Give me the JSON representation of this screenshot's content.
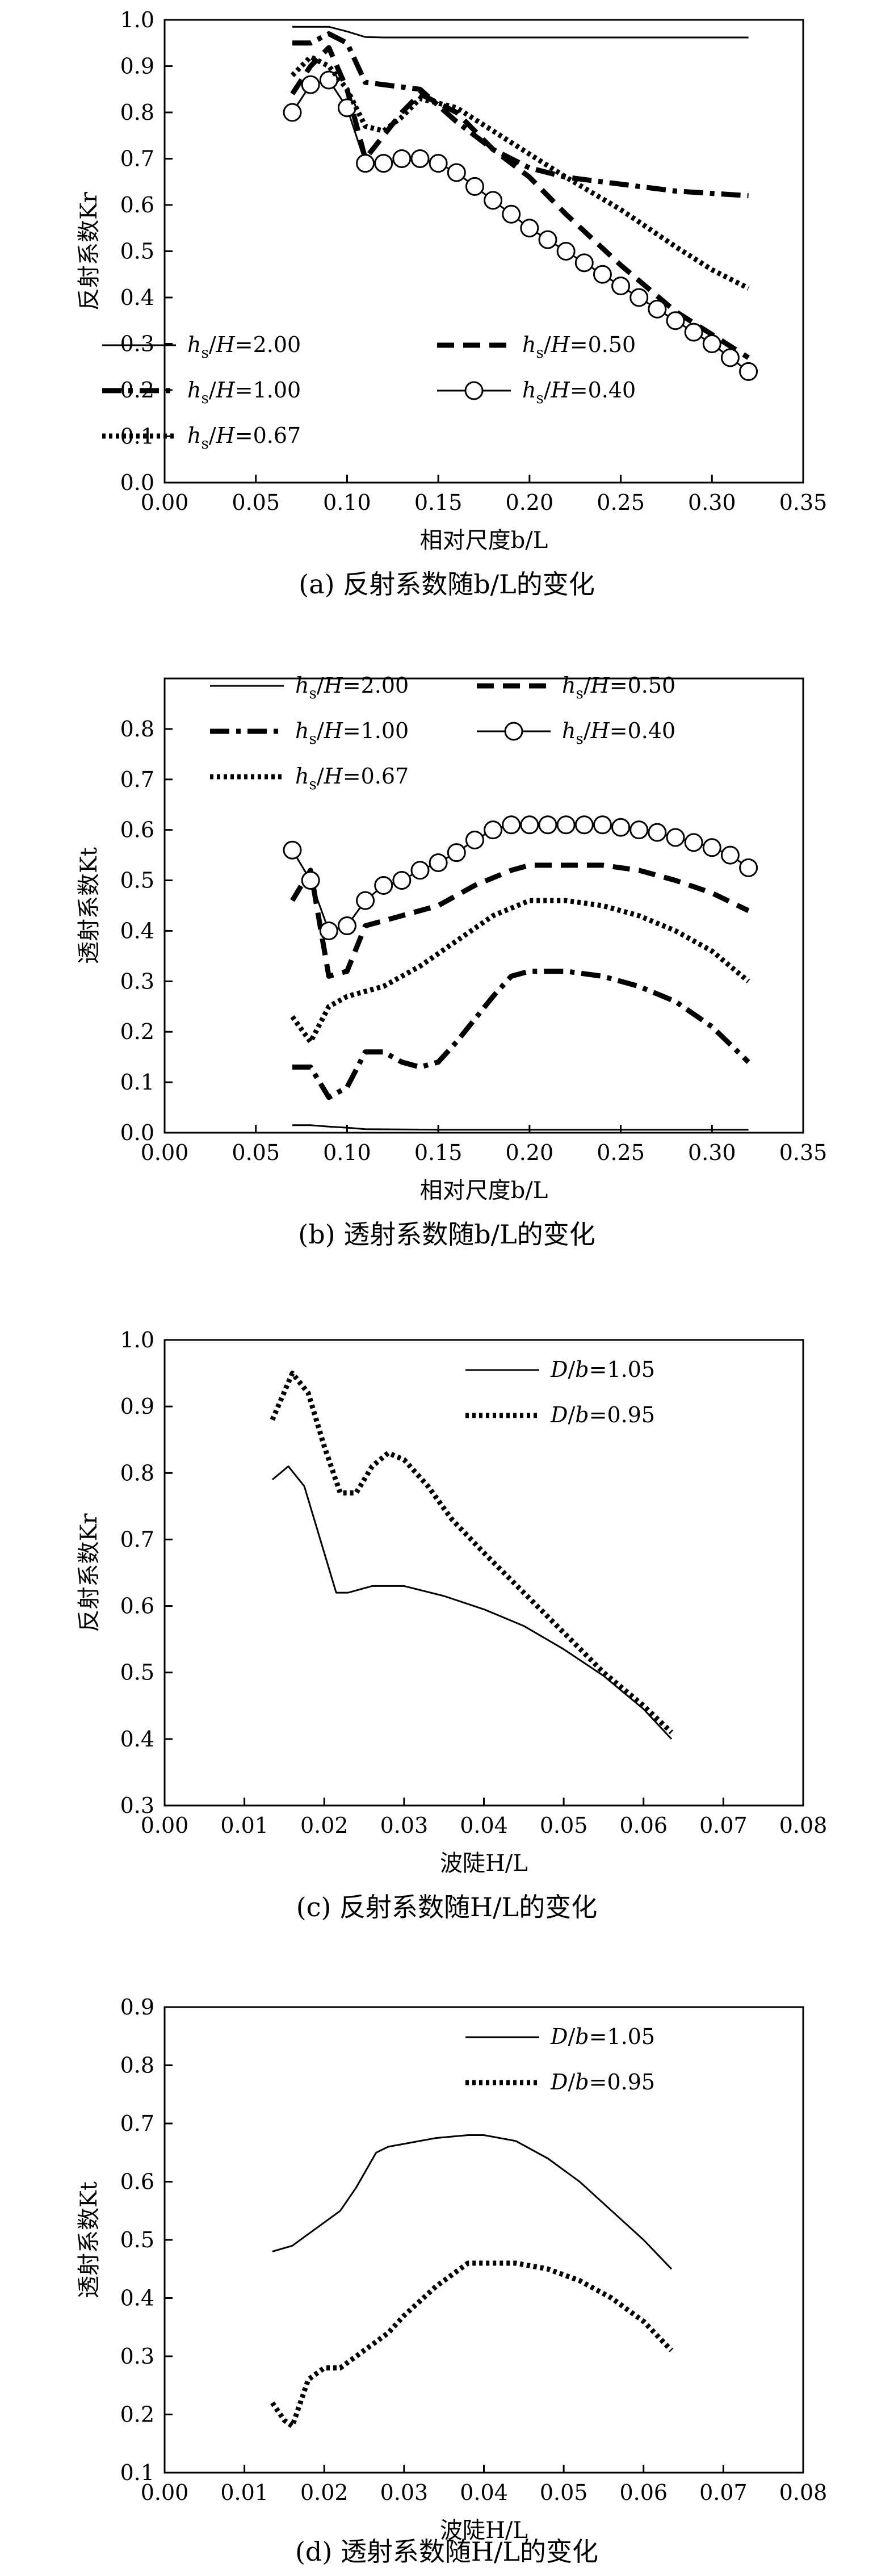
{
  "chart_data": [
    {
      "id": "a",
      "type": "line",
      "caption": "(a) 反射系数随b/L的变化",
      "xlabel": "相对尺度b/L",
      "ylabel": "反射系数Kr",
      "xlim": [
        0,
        0.35
      ],
      "ylim": [
        0,
        1.0
      ],
      "xticks": [
        "0.00",
        "0.05",
        "0.10",
        "0.15",
        "0.20",
        "0.25",
        "0.30",
        "0.35"
      ],
      "yticks": [
        "0.0",
        "0.1",
        "0.2",
        "0.3",
        "0.4",
        "0.5",
        "0.6",
        "0.7",
        "0.8",
        "0.9",
        "1.0"
      ],
      "grid": false,
      "legend": "bottom-left",
      "series": [
        {
          "name": "hs/H=2.00",
          "style": "solid",
          "x": [
            0.07,
            0.08,
            0.09,
            0.1,
            0.11,
            0.12,
            0.15,
            0.2,
            0.25,
            0.3,
            0.32
          ],
          "y": [
            0.985,
            0.985,
            0.985,
            0.975,
            0.963,
            0.962,
            0.962,
            0.962,
            0.962,
            0.962,
            0.962
          ]
        },
        {
          "name": "hs/H=0.50",
          "style": "dash",
          "x": [
            0.07,
            0.08,
            0.09,
            0.1,
            0.11,
            0.12,
            0.13,
            0.14,
            0.16,
            0.18,
            0.2,
            0.22,
            0.25,
            0.28,
            0.3,
            0.32
          ],
          "y": [
            0.84,
            0.9,
            0.94,
            0.85,
            0.7,
            0.75,
            0.8,
            0.84,
            0.8,
            0.72,
            0.66,
            0.58,
            0.47,
            0.37,
            0.32,
            0.27
          ]
        },
        {
          "name": "hs/H=1.00",
          "style": "dashdot",
          "x": [
            0.07,
            0.08,
            0.09,
            0.1,
            0.11,
            0.12,
            0.14,
            0.16,
            0.18,
            0.2,
            0.22,
            0.25,
            0.28,
            0.3,
            0.32
          ],
          "y": [
            0.95,
            0.95,
            0.97,
            0.95,
            0.865,
            0.86,
            0.85,
            0.78,
            0.72,
            0.68,
            0.66,
            0.645,
            0.63,
            0.625,
            0.62
          ]
        },
        {
          "name": "hs/H=0.40",
          "style": "circle",
          "x": [
            0.07,
            0.08,
            0.09,
            0.1,
            0.11,
            0.12,
            0.13,
            0.14,
            0.15,
            0.16,
            0.17,
            0.18,
            0.19,
            0.2,
            0.21,
            0.22,
            0.23,
            0.24,
            0.25,
            0.26,
            0.27,
            0.28,
            0.29,
            0.3,
            0.31,
            0.32
          ],
          "y": [
            0.8,
            0.86,
            0.87,
            0.81,
            0.69,
            0.69,
            0.7,
            0.7,
            0.69,
            0.67,
            0.64,
            0.61,
            0.58,
            0.55,
            0.525,
            0.5,
            0.475,
            0.45,
            0.425,
            0.4,
            0.375,
            0.35,
            0.325,
            0.3,
            0.27,
            0.24
          ]
        },
        {
          "name": "hs/H=0.67",
          "style": "dot",
          "x": [
            0.07,
            0.08,
            0.09,
            0.1,
            0.11,
            0.12,
            0.13,
            0.14,
            0.16,
            0.18,
            0.2,
            0.22,
            0.25,
            0.28,
            0.3,
            0.32
          ],
          "y": [
            0.88,
            0.92,
            0.9,
            0.85,
            0.77,
            0.76,
            0.79,
            0.83,
            0.81,
            0.76,
            0.71,
            0.66,
            0.59,
            0.51,
            0.46,
            0.42
          ]
        }
      ]
    },
    {
      "id": "b",
      "type": "line",
      "caption": "(b) 透射系数随b/L的变化",
      "xlabel": "相对尺度b/L",
      "ylabel": "透射系数Kt",
      "xlim": [
        0,
        0.35
      ],
      "ylim": [
        0,
        0.9
      ],
      "xticks": [
        "0.00",
        "0.05",
        "0.10",
        "0.15",
        "0.20",
        "0.25",
        "0.30",
        "0.35"
      ],
      "yticks": [
        "0.0",
        "0.1",
        "0.2",
        "0.3",
        "0.4",
        "0.5",
        "0.6",
        "0.7",
        "0.8"
      ],
      "grid": false,
      "legend": "top",
      "series": [
        {
          "name": "hs/H=2.00",
          "style": "solid",
          "x": [
            0.07,
            0.08,
            0.09,
            0.1,
            0.11,
            0.15,
            0.2,
            0.25,
            0.3,
            0.32
          ],
          "y": [
            0.015,
            0.015,
            0.012,
            0.01,
            0.007,
            0.006,
            0.006,
            0.006,
            0.006,
            0.006
          ]
        },
        {
          "name": "hs/H=0.50",
          "style": "dash",
          "x": [
            0.07,
            0.08,
            0.09,
            0.1,
            0.11,
            0.13,
            0.15,
            0.17,
            0.19,
            0.2,
            0.22,
            0.24,
            0.26,
            0.28,
            0.3,
            0.32
          ],
          "y": [
            0.46,
            0.52,
            0.31,
            0.32,
            0.41,
            0.43,
            0.45,
            0.49,
            0.52,
            0.53,
            0.53,
            0.53,
            0.52,
            0.5,
            0.475,
            0.44
          ]
        },
        {
          "name": "hs/H=1.00",
          "style": "dashdot",
          "x": [
            0.07,
            0.08,
            0.09,
            0.1,
            0.11,
            0.12,
            0.13,
            0.14,
            0.15,
            0.16,
            0.18,
            0.19,
            0.2,
            0.22,
            0.24,
            0.26,
            0.28,
            0.3,
            0.32
          ],
          "y": [
            0.13,
            0.13,
            0.07,
            0.09,
            0.16,
            0.16,
            0.14,
            0.13,
            0.14,
            0.18,
            0.27,
            0.31,
            0.32,
            0.32,
            0.31,
            0.29,
            0.26,
            0.21,
            0.14
          ]
        },
        {
          "name": "hs/H=0.40",
          "style": "circle",
          "x": [
            0.07,
            0.08,
            0.09,
            0.1,
            0.11,
            0.12,
            0.13,
            0.14,
            0.15,
            0.16,
            0.17,
            0.18,
            0.19,
            0.2,
            0.21,
            0.22,
            0.23,
            0.24,
            0.25,
            0.26,
            0.27,
            0.28,
            0.29,
            0.3,
            0.31,
            0.32
          ],
          "y": [
            0.56,
            0.5,
            0.4,
            0.41,
            0.46,
            0.49,
            0.5,
            0.52,
            0.535,
            0.555,
            0.58,
            0.6,
            0.61,
            0.61,
            0.61,
            0.61,
            0.61,
            0.61,
            0.605,
            0.6,
            0.595,
            0.585,
            0.575,
            0.565,
            0.55,
            0.525
          ]
        },
        {
          "name": "hs/H=0.67",
          "style": "dot",
          "x": [
            0.07,
            0.08,
            0.09,
            0.1,
            0.11,
            0.12,
            0.14,
            0.16,
            0.18,
            0.2,
            0.22,
            0.24,
            0.26,
            0.28,
            0.3,
            0.32
          ],
          "y": [
            0.23,
            0.18,
            0.25,
            0.27,
            0.28,
            0.29,
            0.33,
            0.38,
            0.43,
            0.46,
            0.46,
            0.45,
            0.43,
            0.4,
            0.36,
            0.3
          ]
        }
      ]
    },
    {
      "id": "c",
      "type": "line",
      "caption": "(c) 反射系数随H/L的变化",
      "xlabel": "波陡H/L",
      "ylabel": "反射系数Kr",
      "xlim": [
        0,
        0.08
      ],
      "ylim": [
        0.3,
        1.0
      ],
      "xticks": [
        "0.00",
        "0.01",
        "0.02",
        "0.03",
        "0.04",
        "0.05",
        "0.06",
        "0.07",
        "0.08"
      ],
      "yticks": [
        "0.3",
        "0.4",
        "0.5",
        "0.6",
        "0.7",
        "0.8",
        "0.9",
        "1.0"
      ],
      "grid": false,
      "legend": "top-right",
      "series": [
        {
          "name": "D/b=1.05",
          "style": "solid",
          "x": [
            0.0135,
            0.0155,
            0.0175,
            0.0195,
            0.0215,
            0.023,
            0.026,
            0.028,
            0.03,
            0.035,
            0.04,
            0.045,
            0.05,
            0.055,
            0.06,
            0.0635
          ],
          "y": [
            0.79,
            0.81,
            0.78,
            0.7,
            0.62,
            0.62,
            0.63,
            0.63,
            0.63,
            0.615,
            0.595,
            0.57,
            0.535,
            0.495,
            0.445,
            0.4
          ]
        },
        {
          "name": "D/b=0.95",
          "style": "dot",
          "x": [
            0.0135,
            0.016,
            0.018,
            0.02,
            0.022,
            0.024,
            0.026,
            0.028,
            0.03,
            0.033,
            0.036,
            0.04,
            0.045,
            0.05,
            0.055,
            0.06,
            0.0635
          ],
          "y": [
            0.88,
            0.95,
            0.92,
            0.84,
            0.77,
            0.77,
            0.81,
            0.83,
            0.82,
            0.78,
            0.73,
            0.68,
            0.62,
            0.56,
            0.5,
            0.45,
            0.41
          ]
        }
      ]
    },
    {
      "id": "d",
      "type": "line",
      "caption": "(d) 透射系数随H/L的变化",
      "xlabel": "波陡H/L",
      "ylabel": "透射系数Kt",
      "xlim": [
        0,
        0.08
      ],
      "ylim": [
        0.1,
        0.9
      ],
      "xticks": [
        "0.00",
        "0.01",
        "0.02",
        "0.03",
        "0.04",
        "0.05",
        "0.06",
        "0.07",
        "0.08"
      ],
      "yticks": [
        "0.1",
        "0.2",
        "0.3",
        "0.4",
        "0.5",
        "0.6",
        "0.7",
        "0.8",
        "0.9"
      ],
      "grid": false,
      "legend": "top-right",
      "series": [
        {
          "name": "D/b=1.05",
          "style": "solid",
          "x": [
            0.0135,
            0.016,
            0.018,
            0.02,
            0.022,
            0.024,
            0.0265,
            0.028,
            0.03,
            0.034,
            0.038,
            0.04,
            0.044,
            0.048,
            0.052,
            0.056,
            0.06,
            0.0635
          ],
          "y": [
            0.48,
            0.49,
            0.51,
            0.53,
            0.55,
            0.59,
            0.65,
            0.66,
            0.665,
            0.675,
            0.68,
            0.68,
            0.67,
            0.64,
            0.6,
            0.55,
            0.5,
            0.45
          ]
        },
        {
          "name": "D/b=0.95",
          "style": "dot",
          "x": [
            0.0135,
            0.015,
            0.016,
            0.018,
            0.02,
            0.022,
            0.024,
            0.026,
            0.028,
            0.03,
            0.034,
            0.038,
            0.04,
            0.044,
            0.048,
            0.052,
            0.056,
            0.06,
            0.0635
          ],
          "y": [
            0.22,
            0.19,
            0.18,
            0.26,
            0.28,
            0.28,
            0.3,
            0.32,
            0.34,
            0.37,
            0.42,
            0.46,
            0.46,
            0.46,
            0.45,
            0.43,
            0.4,
            0.36,
            0.31
          ]
        }
      ]
    }
  ]
}
